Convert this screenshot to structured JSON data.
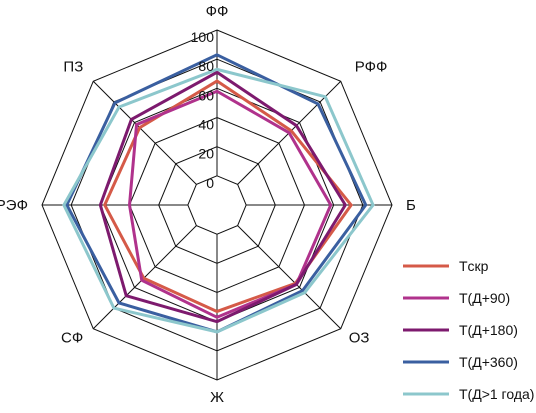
{
  "chart_data": {
    "type": "radar",
    "axes": [
      "ФФ",
      "РФФ",
      "Б",
      "ОЗ",
      "Ж",
      "СФ",
      "РЭФ",
      "ПЗ"
    ],
    "ticks": [
      "0",
      "20",
      "40",
      "60",
      "80",
      "100"
    ],
    "rlim": [
      0,
      100
    ],
    "grid": true,
    "legend_position": "bottom-right",
    "series": [
      {
        "name": "Tскр",
        "color": "#d55a48",
        "values": [
          65,
          52,
          72,
          56,
          53,
          51,
          57,
          55
        ]
      },
      {
        "name": "T(Д+90)",
        "color": "#b0328c",
        "values": [
          58,
          50,
          58,
          57,
          57,
          53,
          40,
          58
        ]
      },
      {
        "name": "T(Д+180)",
        "color": "#7d1a6e",
        "values": [
          71,
          57,
          68,
          57,
          60,
          68,
          60,
          63
        ]
      },
      {
        "name": "T(Д+360)",
        "color": "#3a5fa0",
        "values": [
          83,
          78,
          82,
          63,
          67,
          75,
          83,
          79
        ]
      },
      {
        "name": "T(Д>1 года)",
        "color": "#8cc7cc",
        "values": [
          73,
          85,
          87,
          65,
          67,
          80,
          85,
          75
        ]
      }
    ]
  }
}
